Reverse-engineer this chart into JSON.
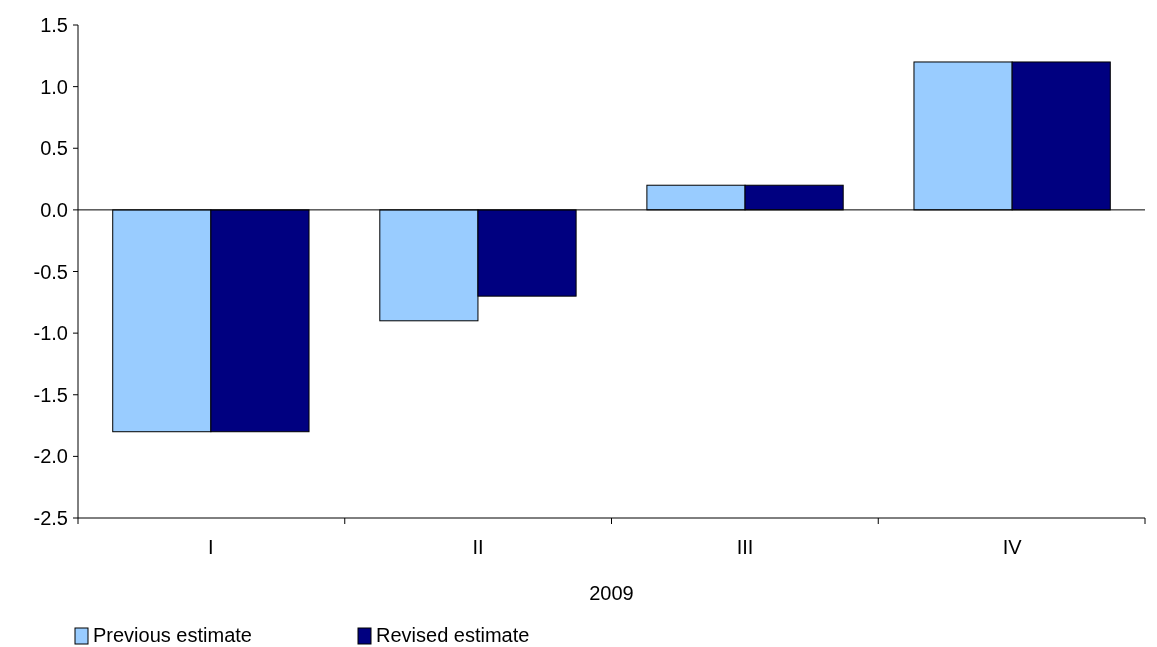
{
  "chart_data": {
    "type": "bar",
    "xlabel": "2009",
    "categories": [
      "I",
      "II",
      "III",
      "IV"
    ],
    "series": [
      {
        "name": "Previous estimate",
        "color": "#99ccff",
        "values": [
          -1.8,
          -0.9,
          0.2,
          1.2
        ]
      },
      {
        "name": "Revised estimate",
        "color": "#000080",
        "values": [
          -1.8,
          -0.7,
          0.2,
          1.2
        ]
      }
    ],
    "ylim": [
      -2.5,
      1.5
    ],
    "yticks": [
      {
        "value": -2.5,
        "label": "-2.5"
      },
      {
        "value": -2,
        "label": "-2.0"
      },
      {
        "value": -1.5,
        "label": "-1.5"
      },
      {
        "value": -1,
        "label": "-1.0"
      },
      {
        "value": -0.5,
        "label": "-0.5"
      },
      {
        "value": 0,
        "label": "0.0"
      },
      {
        "value": 0.5,
        "label": "0.5"
      },
      {
        "value": 1,
        "label": "1.0"
      },
      {
        "value": 1.5,
        "label": "1.5"
      }
    ],
    "legend": "bottom left"
  }
}
